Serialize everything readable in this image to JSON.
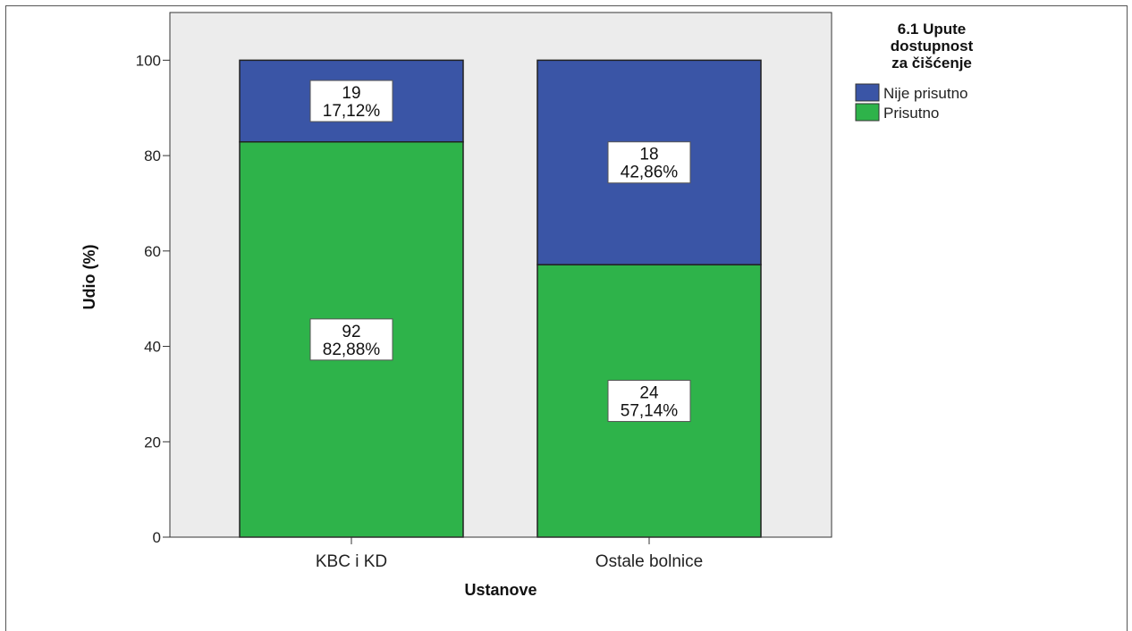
{
  "chart_data": {
    "type": "bar",
    "stacked": true,
    "xlabel": "Ustanove",
    "ylabel": "Udio (%)",
    "ylim": [
      0,
      110
    ],
    "yticks": [
      "0",
      "20",
      "40",
      "60",
      "80",
      "100"
    ],
    "categories": [
      "KBC i KD",
      "Ostale bolnice"
    ],
    "legend_title": "6.1 Upute dostupnost za čišćenje",
    "legend_title_lines": [
      "6.1 Upute",
      "dostupnost",
      "za čišćenje"
    ],
    "legend_position": "right",
    "series": [
      {
        "name": "Prisutno",
        "color": "#2eb34a",
        "values": [
          82.88,
          57.14
        ],
        "counts": [
          "92",
          "24"
        ],
        "labels": [
          "82,88%",
          "57,14%"
        ]
      },
      {
        "name": "Nije prisutno",
        "color": "#3a55a6",
        "values": [
          17.12,
          42.86
        ],
        "counts": [
          "19",
          "18"
        ],
        "labels": [
          "17,12%",
          "42,86%"
        ]
      }
    ],
    "legend_order": [
      1,
      0
    ],
    "plot_background": "#ececec",
    "grid": false
  }
}
